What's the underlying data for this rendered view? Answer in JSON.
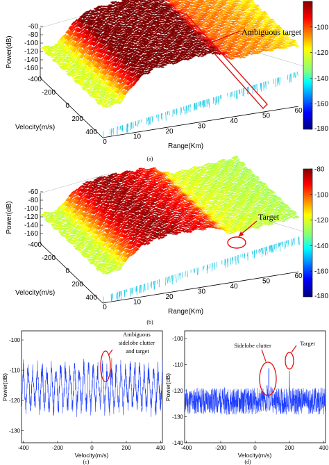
{
  "colors": {
    "line_blue": "#1f3fff",
    "annotation_red": "#e01010",
    "surface_dark_red": "#8b0000",
    "surface_red": "#d62a0a",
    "surface_yellow": "#ece638",
    "surface_green": "#9fd86a",
    "floor_cyan": "#27c9e8"
  },
  "chart_data": [
    {
      "type": "surface3d",
      "panel_label": "(a)",
      "xlabel": "Range(Km)",
      "ylabel": "Velocity(m/s)",
      "zlabel": "Power(dB)",
      "x_ticks": [
        "0",
        "10",
        "20",
        "30",
        "40",
        "50",
        "60"
      ],
      "y_ticks": [
        "-400",
        "-200",
        "0",
        "200",
        "400"
      ],
      "z_ticks": [
        "-60",
        "-80",
        "-100",
        "-120",
        "-140",
        "-160"
      ],
      "xlim": [
        0,
        60
      ],
      "ylim": [
        -400,
        400
      ],
      "zlim": [
        -160,
        -60
      ],
      "colorbar": {
        "ticks": [
          "-100",
          "-120",
          "-140",
          "-160",
          "-180"
        ],
        "range": [
          -180,
          -80
        ]
      },
      "annotation": "Ambiguous target",
      "annotation_shape": "rectangle",
      "profile_by_range": {
        "range_km": [
          0,
          5,
          8,
          12,
          16,
          20,
          24,
          28,
          32,
          35,
          38,
          40,
          45,
          50,
          56,
          60
        ],
        "power_db": [
          -115,
          -118,
          -95,
          -70,
          -62,
          -62,
          -63,
          -64,
          -66,
          -70,
          -88,
          -95,
          -98,
          -100,
          -106,
          -110
        ]
      }
    },
    {
      "type": "surface3d",
      "panel_label": "(b)",
      "xlabel": "Range(Km)",
      "ylabel": "Velocity(m/s)",
      "zlabel": "Power(dB)",
      "x_ticks": [
        "0",
        "10",
        "20",
        "30",
        "40",
        "50",
        "60"
      ],
      "y_ticks": [
        "-400",
        "-200",
        "0",
        "200",
        "400"
      ],
      "z_ticks": [
        "-60",
        "-80",
        "-100",
        "-120",
        "-140",
        "-160"
      ],
      "xlim": [
        0,
        60
      ],
      "ylim": [
        -400,
        400
      ],
      "zlim": [
        -160,
        -60
      ],
      "colorbar": {
        "ticks": [
          "-80",
          "-100",
          "-120",
          "-140",
          "-160",
          "-180"
        ],
        "range": [
          -180,
          -80
        ]
      },
      "annotation": "Target",
      "annotation_shape": "ellipse",
      "profile_by_range": {
        "range_km": [
          0,
          5,
          8,
          12,
          16,
          20,
          24,
          28,
          32,
          35,
          38,
          40,
          45,
          50,
          56,
          60
        ],
        "power_db": [
          -118,
          -120,
          -100,
          -80,
          -75,
          -74,
          -78,
          -82,
          -86,
          -92,
          -110,
          -115,
          -118,
          -120,
          -122,
          -124
        ]
      }
    },
    {
      "type": "line",
      "panel_label": "(c)",
      "xlabel": "Velocity(m/s)",
      "ylabel": "Power(dB)",
      "x_ticks": [
        "-400",
        "-200",
        "0",
        "200",
        "400"
      ],
      "y_ticks": [
        "-100",
        "-110",
        "-120",
        "-130"
      ],
      "xlim": [
        -410,
        410
      ],
      "ylim": [
        -134,
        -97
      ],
      "annotation": "Ambiguous\nsidelobe clutter\nand target",
      "annotation_target_x": 150,
      "series": [
        {
          "mean": -115.8,
          "amplitude": 6.5,
          "period": 27,
          "noise": 3.2,
          "seed": 7,
          "points": 900
        }
      ]
    },
    {
      "type": "line",
      "panel_label": "(d)",
      "xlabel": "Velocity(m/s)",
      "ylabel": "Power(dB)",
      "x_ticks": [
        "-400",
        "-200",
        "0",
        "200",
        "400"
      ],
      "y_ticks": [
        "-100",
        "-110",
        "-120",
        "-130",
        "-140"
      ],
      "xlim": [
        -410,
        410
      ],
      "ylim": [
        -140,
        -97
      ],
      "annotations": [
        {
          "text": "Sidelobe clutter",
          "target_x": 80
        },
        {
          "text": "Target",
          "target_x": 200
        }
      ],
      "series": [
        {
          "mean": -124,
          "noise": 5.2,
          "seed": 11,
          "points": 900,
          "peaks": [
            {
              "x": 80,
              "value": -111.5
            },
            {
              "x": 70,
              "value": -118
            },
            {
              "x": 92,
              "value": -118.5
            },
            {
              "x": 200,
              "value": -112.5
            }
          ]
        }
      ]
    }
  ]
}
